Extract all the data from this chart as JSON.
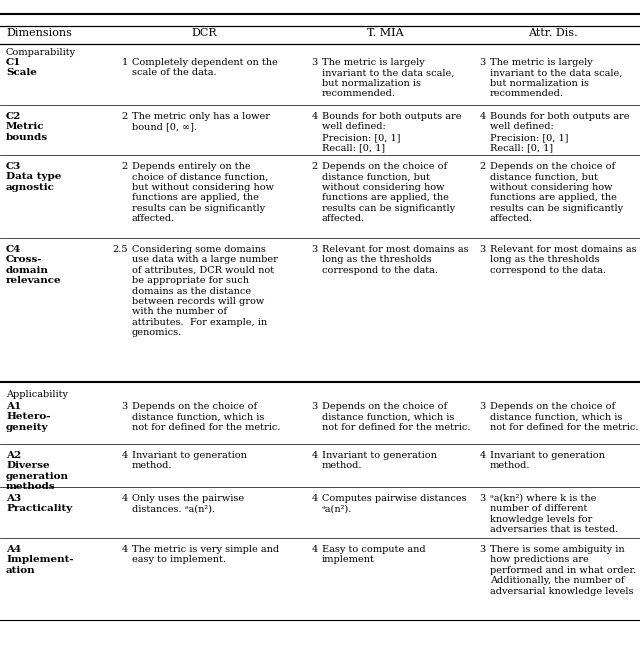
{
  "col_headers": [
    "Dimensions",
    "DCR",
    "T. MIA",
    "Attr. Dis."
  ],
  "sections": [
    {
      "name": "Comparability",
      "rows": [
        {
          "dim": "C1\nScale",
          "dcr_score": "1",
          "dcr_text": "Completely dependent on the\nscale of the data.",
          "tmia_score": "3",
          "tmia_text": "The metric is largely\ninvariant to the data scale,\nbut normalization is\nrecommended.",
          "attr_score": "3",
          "attr_text": "The metric is largely\ninvariant to the data scale,\nbut normalization is\nrecommended."
        },
        {
          "dim": "C2\nMetric\nbounds",
          "dcr_score": "2",
          "dcr_text": "The metric only has a lower\nbound [0, ∞].",
          "tmia_score": "4",
          "tmia_text": "Bounds for both outputs are\nwell defined:\nPrecision: [0, 1]\nRecall: [0, 1]",
          "attr_score": "4",
          "attr_text": "Bounds for both outputs are\nwell defined:\nPrecision: [0, 1]\nRecall: [0, 1]"
        },
        {
          "dim": "C3\nData type\nagnostic",
          "dcr_score": "2",
          "dcr_text": "Depends entirely on the\nchoice of distance function,\nbut without considering how\nfunctions are applied, the\nresults can be significantly\naffected.",
          "tmia_score": "2",
          "tmia_text": "Depends on the choice of\ndistance function, but\nwithout considering how\nfunctions are applied, the\nresults can be significantly\naffected.",
          "attr_score": "2",
          "attr_text": "Depends on the choice of\ndistance function, but\nwithout considering how\nfunctions are applied, the\nresults can be significantly\naffected."
        },
        {
          "dim": "C4\nCross-\ndomain\nrelevance",
          "dcr_score": "2.5",
          "dcr_text": "Considering some domains\nuse data with a large number\nof attributes, DCR would not\nbe appropriate for such\ndomains as the distance\nbetween records will grow\nwith the number of\nattributes.  For example, in\ngenomics.",
          "tmia_score": "3",
          "tmia_text": "Relevant for most domains as\nlong as the thresholds\ncorrespond to the data.",
          "attr_score": "3",
          "attr_text": "Relevant for most domains as\nlong as the thresholds\ncorrespond to the data."
        }
      ]
    },
    {
      "name": "Applicability",
      "rows": [
        {
          "dim": "A1\nHetero-\ngeneity",
          "dcr_score": "3",
          "dcr_text": "Depends on the choice of\ndistance function, which is\nnot for defined for the metric.",
          "tmia_score": "3",
          "tmia_text": "Depends on the choice of\ndistance function, which is\nnot for defined for the metric.",
          "attr_score": "3",
          "attr_text": "Depends on the choice of\ndistance function, which is\nnot for defined for the metric."
        },
        {
          "dim": "A2\nDiverse\ngeneration\nmethods",
          "dcr_score": "4",
          "dcr_text": "Invariant to generation\nmethod.",
          "tmia_score": "4",
          "tmia_text": "Invariant to generation\nmethod.",
          "attr_score": "4",
          "attr_text": "Invariant to generation\nmethod."
        },
        {
          "dim": "A3\nPracticality",
          "dcr_score": "4",
          "dcr_text": "Only uses the pairwise\ndistances. ᵊa(n²).",
          "tmia_score": "4",
          "tmia_text": "Computes pairwise distances\nᵊa(n²).",
          "attr_score": "3",
          "attr_text": "ᵊa(kn²) where k is the\nnumber of different\nknowledge levels for\nadversaries that is tested."
        },
        {
          "dim": "A4\nImplement-\nation",
          "dcr_score": "4",
          "dcr_text": "The metric is very simple and\neasy to implement.",
          "tmia_score": "4",
          "tmia_text": "Easy to compute and\nimplement",
          "attr_score": "3",
          "attr_text": "There is some ambiguity in\nhow predictions are\nperformed and in what order.\nAdditionally, the number of\nadversarial knowledge levels"
        }
      ]
    }
  ],
  "bg_color": "white",
  "text_color": "black",
  "line_color": "black",
  "fontsize": 7.0,
  "header_fontsize": 8.0,
  "bold_fontsize": 7.5
}
